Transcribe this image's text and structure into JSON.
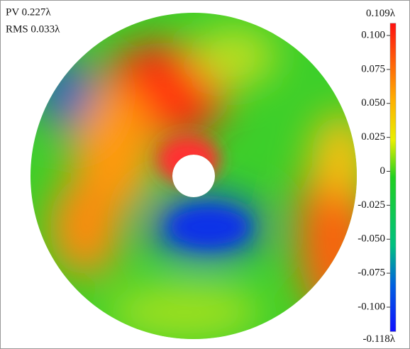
{
  "annotations": {
    "pv": "PV 0.227λ",
    "rms": "RMS 0.033λ"
  },
  "colorbar": {
    "max": {
      "value": 0.109,
      "label": "0.109λ"
    },
    "min": {
      "value": -0.118,
      "label": "-0.118λ"
    },
    "ticks": [
      {
        "value": 0.1,
        "label": "0.100"
      },
      {
        "value": 0.075,
        "label": "0.075"
      },
      {
        "value": 0.05,
        "label": "0.050"
      },
      {
        "value": 0.025,
        "label": "0.025"
      },
      0,
      {
        "value": -0.025,
        "label": "-0.025"
      },
      {
        "value": -0.05,
        "label": "-0.050"
      },
      {
        "value": -0.075,
        "label": "-0.075"
      },
      {
        "value": -0.1,
        "label": "-0.100"
      }
    ]
  }
}
